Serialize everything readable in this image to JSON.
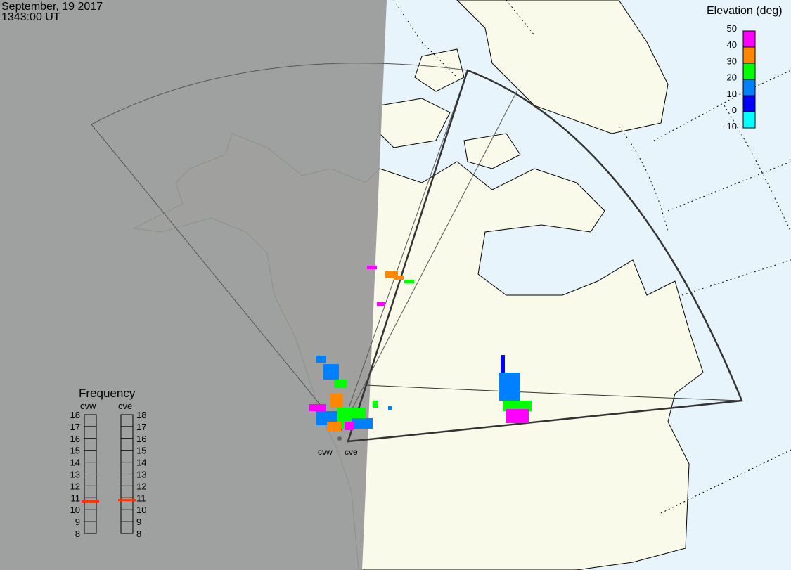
{
  "header": {
    "date": "September, 19 2017",
    "time": "1343:00 UT"
  },
  "elevation_legend": {
    "title": "Elevation (deg)",
    "ticks": [
      "50",
      "40",
      "30",
      "20",
      "10",
      "0",
      "-10"
    ],
    "colors": [
      "#ff00ff",
      "#ff8800",
      "#00ff00",
      "#0080ff",
      "#0000ff",
      "#00ffff"
    ]
  },
  "frequency_panel": {
    "title": "Frequency",
    "ticks": [
      "18",
      "17",
      "16",
      "15",
      "14",
      "13",
      "12",
      "11",
      "10",
      "9",
      "8"
    ],
    "radars": [
      {
        "name": "cvw",
        "frequency_mhz": 10.7
      },
      {
        "name": "cve",
        "frequency_mhz": 10.8
      }
    ],
    "marker_color": "#ff3300"
  },
  "radar_labels": {
    "cvw": "cvw",
    "cve": "cve"
  },
  "colors": {
    "night": "#999999",
    "land": "#fafaea",
    "ocean": "#e8f4fc"
  }
}
